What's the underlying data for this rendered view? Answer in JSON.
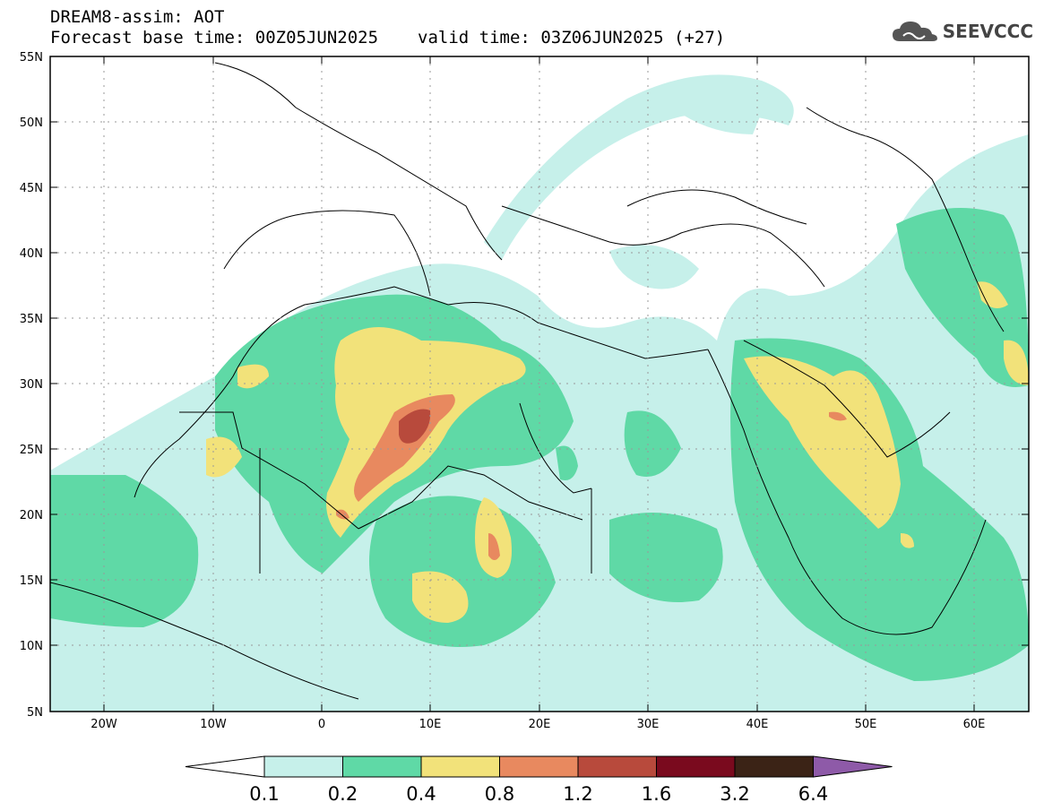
{
  "title": {
    "line1": "DREAM8-assim: AOT",
    "base_time": "Forecast base time: 00Z05JUN2025",
    "valid_time": "valid time: 03Z06JUN2025 (+27)"
  },
  "logo": {
    "text": "SEEVCCC",
    "icon": "cloud-icon"
  },
  "axes": {
    "lat_labels": [
      "55N",
      "50N",
      "45N",
      "40N",
      "35N",
      "30N",
      "25N",
      "20N",
      "15N",
      "10N",
      "5N"
    ],
    "lon_labels": [
      "20W",
      "10W",
      "0",
      "10E",
      "20E",
      "30E",
      "40E",
      "50E",
      "60E"
    ],
    "lat_range": [
      5,
      55
    ],
    "lon_range": [
      -25,
      65
    ],
    "grid": true
  },
  "colorbar": {
    "levels": [
      "0.1",
      "0.2",
      "0.4",
      "0.8",
      "1.2",
      "1.6",
      "3.2",
      "6.4"
    ],
    "colors": [
      "#ffffff",
      "#c6f0ea",
      "#5fd9a6",
      "#f2e27a",
      "#e8895f",
      "#b84a3c",
      "#7a0a1e",
      "#3b2316",
      "#8e5aa8"
    ]
  }
}
